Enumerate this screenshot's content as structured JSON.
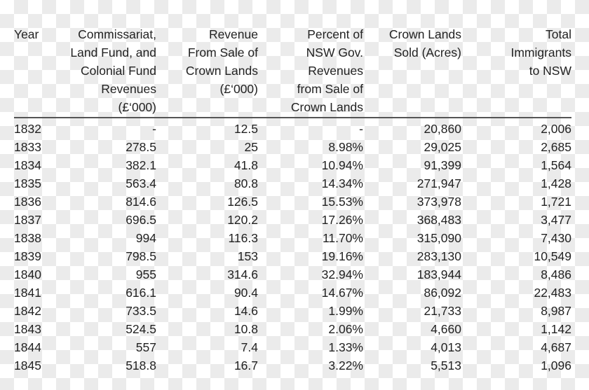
{
  "table": {
    "headers": [
      "Year",
      "Commissariat,\nLand Fund, and\nColonial Fund\nRevenues\n(£‘000)",
      "Revenue\nFrom Sale of\nCrown Lands\n(£‘000)",
      "Percent of\nNSW Gov.\nRevenues\nfrom Sale of\nCrown Lands",
      "Crown Lands\nSold (Acres)",
      "Total\nImmigrants\nto NSW"
    ],
    "rows": [
      [
        "1832",
        "-",
        "12.5",
        "-",
        "20,860",
        "2,006"
      ],
      [
        "1833",
        "278.5",
        "25",
        "8.98%",
        "29,025",
        "2,685"
      ],
      [
        "1834",
        "382.1",
        "41.8",
        "10.94%",
        "91,399",
        "1,564"
      ],
      [
        "1835",
        "563.4",
        "80.8",
        "14.34%",
        "271,947",
        "1,428"
      ],
      [
        "1836",
        "814.6",
        "126.5",
        "15.53%",
        "373,978",
        "1,721"
      ],
      [
        "1837",
        "696.5",
        "120.2",
        "17.26%",
        "368,483",
        "3,477"
      ],
      [
        "1838",
        "994",
        "116.3",
        "11.70%",
        "315,090",
        "7,430"
      ],
      [
        "1839",
        "798.5",
        "153",
        "19.16%",
        "283,130",
        "10,549"
      ],
      [
        "1840",
        "955",
        "314.6",
        "32.94%",
        "183,944",
        "8,486"
      ],
      [
        "1841",
        "616.1",
        "90.4",
        "14.67%",
        "86,092",
        "22,483"
      ],
      [
        "1842",
        "733.5",
        "14.6",
        "1.99%",
        "21,733",
        "8,987"
      ],
      [
        "1843",
        "524.5",
        "10.8",
        "2.06%",
        "4,660",
        "1,142"
      ],
      [
        "1844",
        "557",
        "7.4",
        "1.33%",
        "4,013",
        "4,687"
      ],
      [
        "1845",
        "518.8",
        "16.7",
        "3.22%",
        "5,513",
        "1,096"
      ]
    ]
  }
}
